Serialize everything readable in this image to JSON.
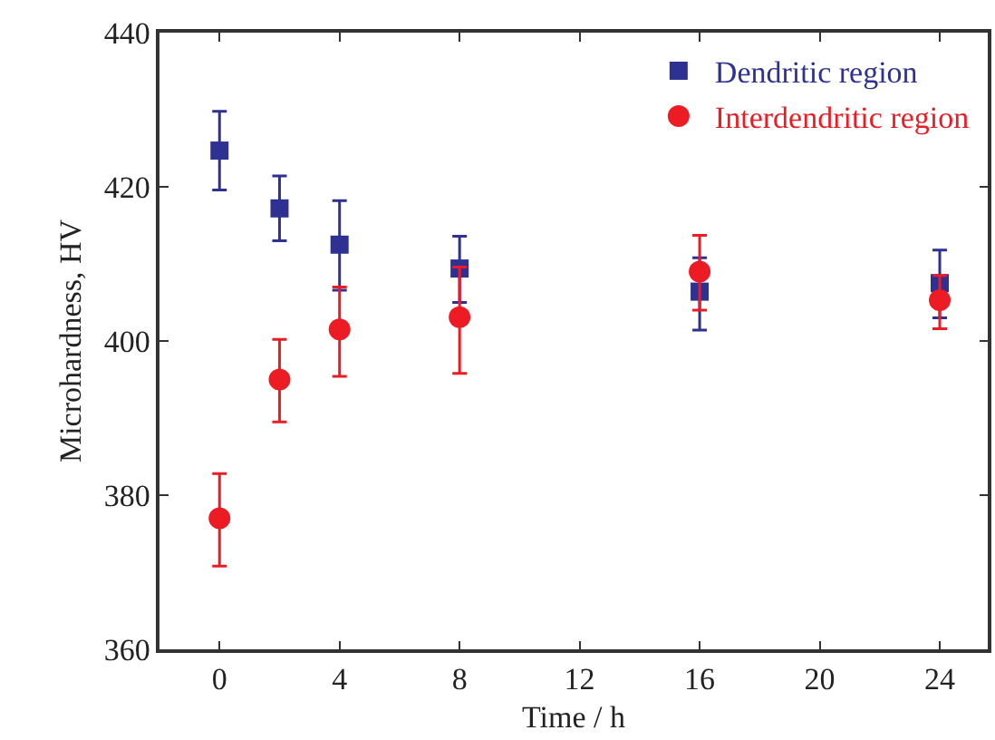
{
  "chart_data": {
    "type": "scatter",
    "xlabel": "Time / h",
    "ylabel": "Microhardness, HV",
    "x": [
      0,
      2,
      4,
      8,
      16,
      24
    ],
    "series": [
      {
        "name": "Dendritic region",
        "color": "#2e3192",
        "marker": "square",
        "values": [
          424.7,
          417.2,
          412.5,
          409.4,
          406.4,
          407.5
        ],
        "errors": [
          [
            419.6,
            429.8
          ],
          [
            413,
            421.4
          ],
          [
            406.6,
            418.2
          ],
          [
            405,
            413.6
          ],
          [
            401.4,
            410.8
          ],
          [
            403,
            411.8
          ]
        ]
      },
      {
        "name": "Interdendritic region",
        "color": "#ed1c24",
        "marker": "circle",
        "values": [
          377,
          395,
          401.5,
          403.1,
          409,
          405.3
        ],
        "errors": [
          [
            370.8,
            382.8
          ],
          [
            389.5,
            400.2
          ],
          [
            395.4,
            407
          ],
          [
            395.8,
            409.6
          ],
          [
            404,
            413.7
          ],
          [
            401.6,
            408.5
          ]
        ]
      }
    ],
    "xlim": [
      -2,
      25.6
    ],
    "xticks": [
      0,
      4,
      8,
      12,
      16,
      20,
      24
    ],
    "ylim": [
      360,
      440
    ],
    "yticks": [
      360,
      380,
      400,
      420,
      440
    ],
    "grid": false,
    "legend": "top right"
  }
}
